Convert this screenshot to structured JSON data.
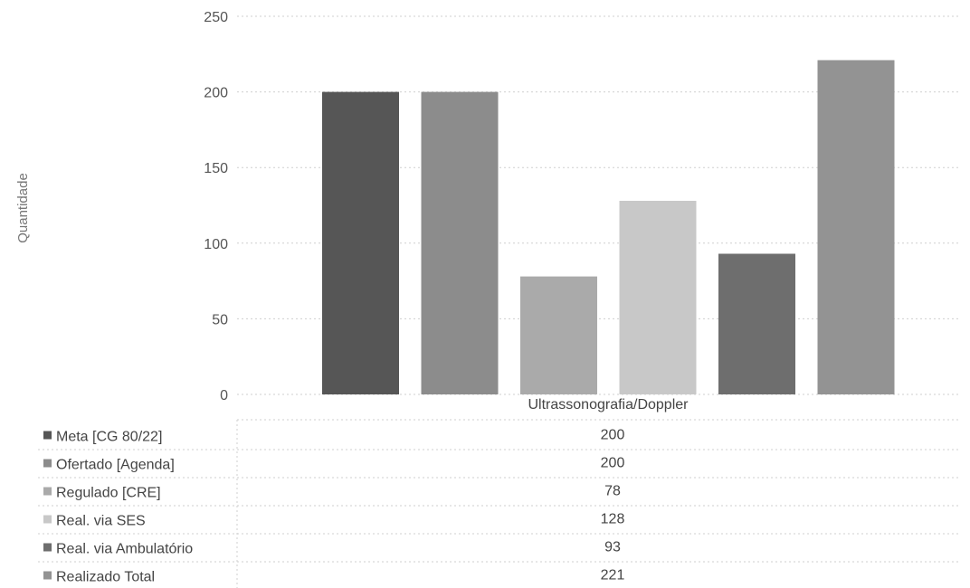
{
  "chart_data": {
    "type": "bar",
    "categories": [
      "Ultrassonografia/Doppler"
    ],
    "series": [
      {
        "name": "Meta [CG 80/22]",
        "values": [
          200
        ],
        "color": "#565656"
      },
      {
        "name": "Ofertado [Agenda]",
        "values": [
          200
        ],
        "color": "#8c8c8c"
      },
      {
        "name": "Regulado [CRE]",
        "values": [
          78
        ],
        "color": "#aaaaaa"
      },
      {
        "name": "Real. via SES",
        "values": [
          128
        ],
        "color": "#c8c8c8"
      },
      {
        "name": "Real. via Ambulatório",
        "values": [
          93
        ],
        "color": "#6e6e6e"
      },
      {
        "name": "Realizado Total",
        "values": [
          221
        ],
        "color": "#939393"
      }
    ],
    "ylabel": "Quantidade",
    "yticks": [
      0,
      50,
      100,
      150,
      200,
      250
    ],
    "ylim": [
      0,
      250
    ],
    "legend": "data-table-below"
  }
}
